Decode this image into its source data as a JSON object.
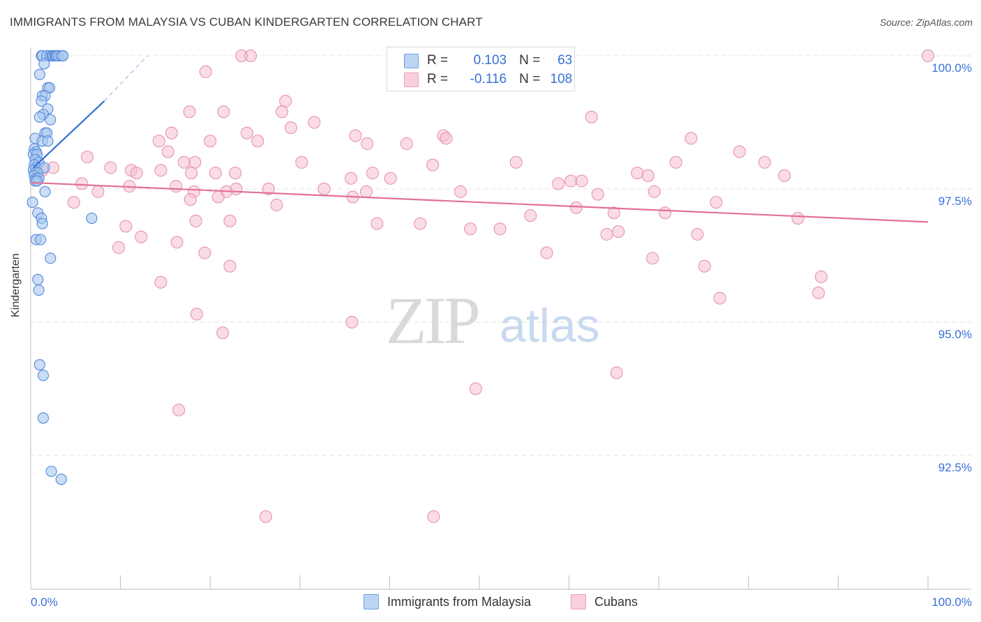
{
  "title": "IMMIGRANTS FROM MALAYSIA VS CUBAN KINDERGARTEN CORRELATION CHART",
  "source": "Source: ZipAtlas.com",
  "watermark": {
    "zip": "ZIP",
    "atlas": "atlas"
  },
  "legend": {
    "malaysia": {
      "r_label": "R =",
      "r_value": "0.103",
      "n_label": "N =",
      "n_value": "63"
    },
    "cubans": {
      "r_label": "R =",
      "r_value": "-0.116",
      "n_label": "N =",
      "n_value": "108"
    }
  },
  "bottom_legend": {
    "malaysia": "Immigrants from Malaysia",
    "cubans": "Cubans"
  },
  "colors": {
    "blue_fill": "#a9c8f0",
    "blue_stroke": "#5b8fd9",
    "blue_line": "#2f6fcf",
    "pink_fill": "#f6c0d0",
    "pink_stroke": "#e68aa8",
    "pink_line": "#e2709a",
    "tick_text": "#3a6fd8",
    "grid": "#e3e3e3"
  },
  "chart_data": {
    "type": "scatter",
    "title": "IMMIGRANTS FROM MALAYSIA VS CUBAN KINDERGARTEN CORRELATION CHART",
    "xlabel": "",
    "ylabel": "Kindergarten",
    "xlim": [
      0,
      100
    ],
    "ylim": [
      90.3,
      100.3
    ],
    "x_tick_labels": [
      "0.0%",
      "100.0%"
    ],
    "y_ticks": [
      92.5,
      95.0,
      97.5,
      100.0
    ],
    "y_tick_labels": [
      "92.5%",
      "95.0%",
      "97.5%",
      "100.0%"
    ],
    "series": [
      {
        "name": "Immigrants from Malaysia",
        "r": 0.103,
        "n": 63,
        "trend": {
          "x": [
            0.3,
            8.2
          ],
          "y": [
            97.9,
            99.15
          ],
          "dashed_to": [
            13.0,
            100.0
          ]
        },
        "points": [
          [
            1.2,
            100
          ],
          [
            1.3,
            100
          ],
          [
            1.8,
            100
          ],
          [
            2.2,
            100
          ],
          [
            2.4,
            100
          ],
          [
            2.5,
            100
          ],
          [
            2.7,
            100
          ],
          [
            2.8,
            100
          ],
          [
            2.9,
            100
          ],
          [
            3.1,
            100
          ],
          [
            3.4,
            100
          ],
          [
            3.6,
            100
          ],
          [
            1.5,
            99.85
          ],
          [
            1.0,
            99.65
          ],
          [
            1.9,
            99.4
          ],
          [
            2.1,
            99.4
          ],
          [
            1.3,
            99.25
          ],
          [
            1.6,
            99.25
          ],
          [
            1.2,
            99.15
          ],
          [
            1.9,
            99.0
          ],
          [
            1.4,
            98.9
          ],
          [
            1.0,
            98.85
          ],
          [
            2.2,
            98.8
          ],
          [
            1.6,
            98.55
          ],
          [
            1.8,
            98.55
          ],
          [
            0.5,
            98.45
          ],
          [
            1.3,
            98.4
          ],
          [
            1.9,
            98.4
          ],
          [
            0.4,
            98.25
          ],
          [
            0.6,
            98.2
          ],
          [
            0.3,
            98.15
          ],
          [
            0.7,
            98.15
          ],
          [
            0.5,
            98.05
          ],
          [
            0.9,
            98.0
          ],
          [
            0.4,
            97.95
          ],
          [
            0.6,
            97.9
          ],
          [
            1.5,
            97.9
          ],
          [
            0.3,
            97.85
          ],
          [
            0.5,
            97.8
          ],
          [
            0.8,
            97.8
          ],
          [
            0.4,
            97.75
          ],
          [
            0.6,
            97.7
          ],
          [
            0.9,
            97.7
          ],
          [
            0.5,
            97.65
          ],
          [
            0.7,
            97.65
          ],
          [
            1.6,
            97.45
          ],
          [
            0.2,
            97.25
          ],
          [
            0.8,
            97.05
          ],
          [
            1.2,
            96.95
          ],
          [
            1.3,
            96.85
          ],
          [
            6.8,
            96.95
          ],
          [
            0.6,
            96.55
          ],
          [
            1.1,
            96.55
          ],
          [
            2.2,
            96.2
          ],
          [
            0.8,
            95.8
          ],
          [
            0.9,
            95.6
          ],
          [
            1.0,
            94.2
          ],
          [
            1.4,
            94.0
          ],
          [
            1.4,
            93.2
          ],
          [
            2.3,
            92.2
          ],
          [
            3.4,
            92.05
          ]
        ]
      },
      {
        "name": "Cubans",
        "r": -0.116,
        "n": 108,
        "trend": {
          "x": [
            0,
            100
          ],
          "y": [
            97.62,
            96.88
          ]
        },
        "points": [
          [
            23.5,
            100
          ],
          [
            24.5,
            100
          ],
          [
            100,
            100
          ],
          [
            19.5,
            99.7
          ],
          [
            28.4,
            99.15
          ],
          [
            17.7,
            98.95
          ],
          [
            21.5,
            98.95
          ],
          [
            28.0,
            98.95
          ],
          [
            62.5,
            98.85
          ],
          [
            31.6,
            98.75
          ],
          [
            29.0,
            98.65
          ],
          [
            15.7,
            98.55
          ],
          [
            24.1,
            98.55
          ],
          [
            36.2,
            98.5
          ],
          [
            46.0,
            98.5
          ],
          [
            46.3,
            98.45
          ],
          [
            73.6,
            98.45
          ],
          [
            14.3,
            98.4
          ],
          [
            20.0,
            98.4
          ],
          [
            25.3,
            98.4
          ],
          [
            37.5,
            98.35
          ],
          [
            41.9,
            98.35
          ],
          [
            15.3,
            98.2
          ],
          [
            79.0,
            98.2
          ],
          [
            6.3,
            98.1
          ],
          [
            17.1,
            98.0
          ],
          [
            18.3,
            98.0
          ],
          [
            30.2,
            98.0
          ],
          [
            71.9,
            98.0
          ],
          [
            81.8,
            98.0
          ],
          [
            2.5,
            97.9
          ],
          [
            8.9,
            97.9
          ],
          [
            11.2,
            97.85
          ],
          [
            1.3,
            97.85
          ],
          [
            14.5,
            97.85
          ],
          [
            11.8,
            97.8
          ],
          [
            17.9,
            97.8
          ],
          [
            20.6,
            97.8
          ],
          [
            22.8,
            97.8
          ],
          [
            38.1,
            97.8
          ],
          [
            67.6,
            97.8
          ],
          [
            68.8,
            97.75
          ],
          [
            84.0,
            97.75
          ],
          [
            35.7,
            97.7
          ],
          [
            40.1,
            97.7
          ],
          [
            60.2,
            97.65
          ],
          [
            61.4,
            97.65
          ],
          [
            58.8,
            97.6
          ],
          [
            5.7,
            97.6
          ],
          [
            11.0,
            97.55
          ],
          [
            16.2,
            97.55
          ],
          [
            22.9,
            97.5
          ],
          [
            26.5,
            97.5
          ],
          [
            32.7,
            97.5
          ],
          [
            7.5,
            97.45
          ],
          [
            18.2,
            97.45
          ],
          [
            21.8,
            97.45
          ],
          [
            37.4,
            97.45
          ],
          [
            47.9,
            97.45
          ],
          [
            69.5,
            97.45
          ],
          [
            63.2,
            97.4
          ],
          [
            35.9,
            97.35
          ],
          [
            17.8,
            97.3
          ],
          [
            4.8,
            97.25
          ],
          [
            76.4,
            97.25
          ],
          [
            27.4,
            97.2
          ],
          [
            60.8,
            97.15
          ],
          [
            65.0,
            97.05
          ],
          [
            70.7,
            97.05
          ],
          [
            85.5,
            96.95
          ],
          [
            18.4,
            96.9
          ],
          [
            22.2,
            96.9
          ],
          [
            38.6,
            96.85
          ],
          [
            43.4,
            96.85
          ],
          [
            10.6,
            96.8
          ],
          [
            49.0,
            96.75
          ],
          [
            52.3,
            96.75
          ],
          [
            65.5,
            96.7
          ],
          [
            64.2,
            96.65
          ],
          [
            74.3,
            96.65
          ],
          [
            12.3,
            96.6
          ],
          [
            16.3,
            96.5
          ],
          [
            9.8,
            96.4
          ],
          [
            19.4,
            96.3
          ],
          [
            57.5,
            96.3
          ],
          [
            69.3,
            96.2
          ],
          [
            22.2,
            96.05
          ],
          [
            75.1,
            96.05
          ],
          [
            88.1,
            95.85
          ],
          [
            14.5,
            95.75
          ],
          [
            87.8,
            95.55
          ],
          [
            76.8,
            95.45
          ],
          [
            18.5,
            95.15
          ],
          [
            35.8,
            95.0
          ],
          [
            21.4,
            94.8
          ],
          [
            65.3,
            94.05
          ],
          [
            49.6,
            93.75
          ],
          [
            16.5,
            93.35
          ],
          [
            26.2,
            91.35
          ],
          [
            44.9,
            91.35
          ],
          [
            44.8,
            97.95
          ],
          [
            20.9,
            97.35
          ],
          [
            54.1,
            98.0
          ],
          [
            55.7,
            97.0
          ]
        ]
      }
    ]
  }
}
